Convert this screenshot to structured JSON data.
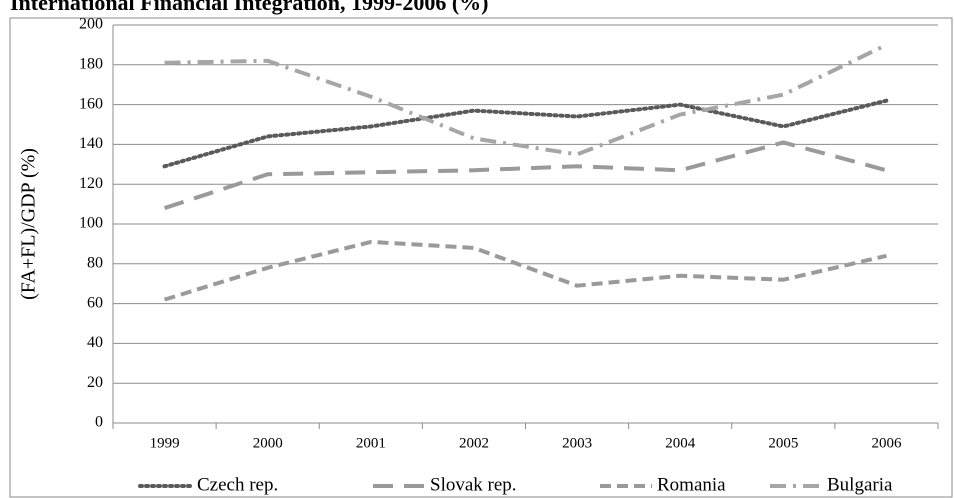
{
  "chart_data": {
    "type": "line",
    "title": "International Financial Integration, 1999-2006 (%)",
    "y_label": "(FA+FL)/GDP (%)",
    "categories": [
      "1999",
      "2000",
      "2001",
      "2002",
      "2003",
      "2004",
      "2005",
      "2006"
    ],
    "series": [
      {
        "name": "Czech rep.",
        "color": "#5a5a5a",
        "values": [
          129,
          144,
          149,
          157,
          154,
          160,
          149,
          162
        ]
      },
      {
        "name": "Slovak rep.",
        "color": "#9a9a9a",
        "values": [
          108,
          125,
          126,
          127,
          129,
          127,
          141,
          127
        ]
      },
      {
        "name": "Romania",
        "color": "#9a9a9a",
        "values": [
          62,
          78,
          91,
          88,
          69,
          74,
          72,
          84
        ]
      },
      {
        "name": "Bulgaria",
        "color": "#a6a6a6",
        "values": [
          181,
          182,
          164,
          143,
          135,
          155,
          165,
          190
        ]
      }
    ],
    "ylim": [
      0,
      200
    ],
    "yticks": [
      0,
      20,
      40,
      60,
      80,
      100,
      120,
      140,
      160,
      180,
      200
    ],
    "grid": true
  }
}
